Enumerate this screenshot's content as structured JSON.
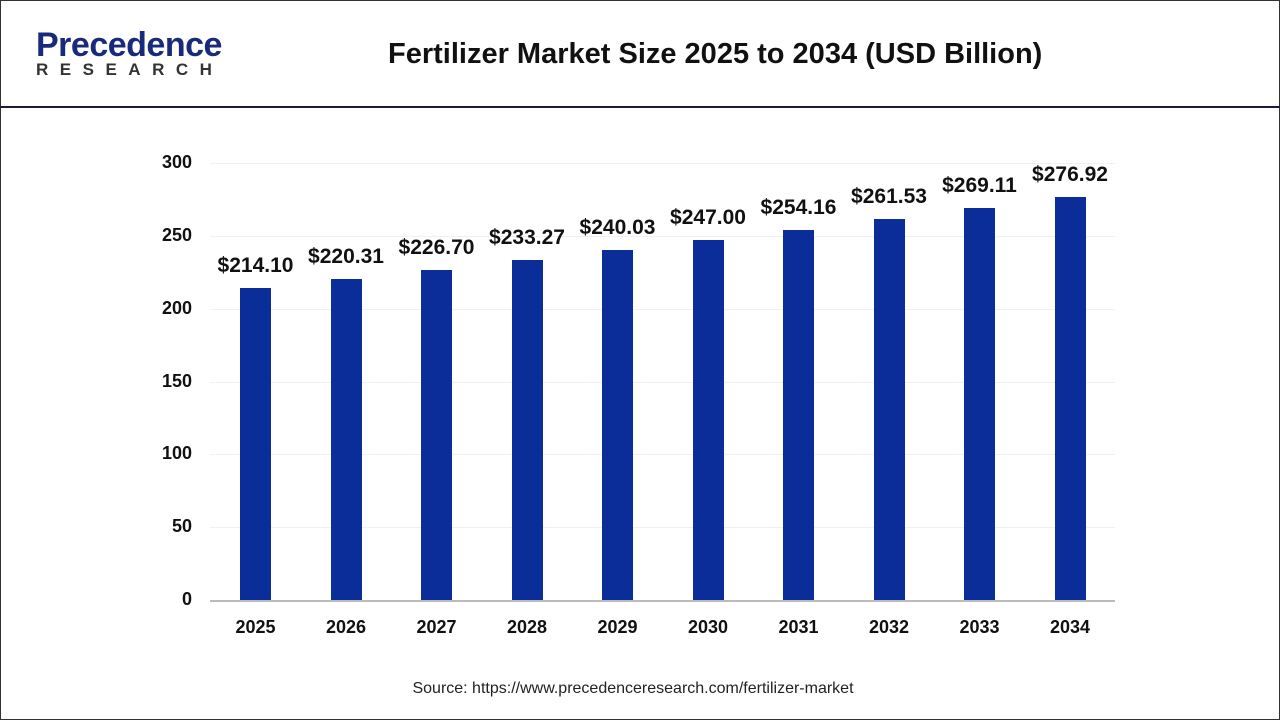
{
  "header": {
    "logo_main": "Precedence",
    "logo_sub": "RESEARCH",
    "title": "Fertilizer Market Size 2025 to 2034 (USD Billion)"
  },
  "colors": {
    "bar": "#0a2d9a",
    "header_rule": "#1a1a3a",
    "logo": "#1a2a7a"
  },
  "source": "Source: https://www.precedenceresearch.com/fertilizer-market",
  "chart_data": {
    "type": "bar",
    "title": "Fertilizer Market Size 2025 to 2034 (USD Billion)",
    "xlabel": "",
    "ylabel": "",
    "ylim": [
      0,
      300
    ],
    "yticks": [
      0,
      50,
      100,
      150,
      200,
      250,
      300
    ],
    "grid": true,
    "legend": null,
    "categories": [
      "2025",
      "2026",
      "2027",
      "2028",
      "2029",
      "2030",
      "2031",
      "2032",
      "2033",
      "2034"
    ],
    "values": [
      214.1,
      220.31,
      226.7,
      233.27,
      240.03,
      247.0,
      254.16,
      261.53,
      269.11,
      276.92
    ],
    "labels": [
      "$214.10",
      "$220.31",
      "$226.70",
      "$233.27",
      "$240.03",
      "$247.00",
      "$254.16",
      "$261.53",
      "$269.11",
      "$276.92"
    ]
  }
}
